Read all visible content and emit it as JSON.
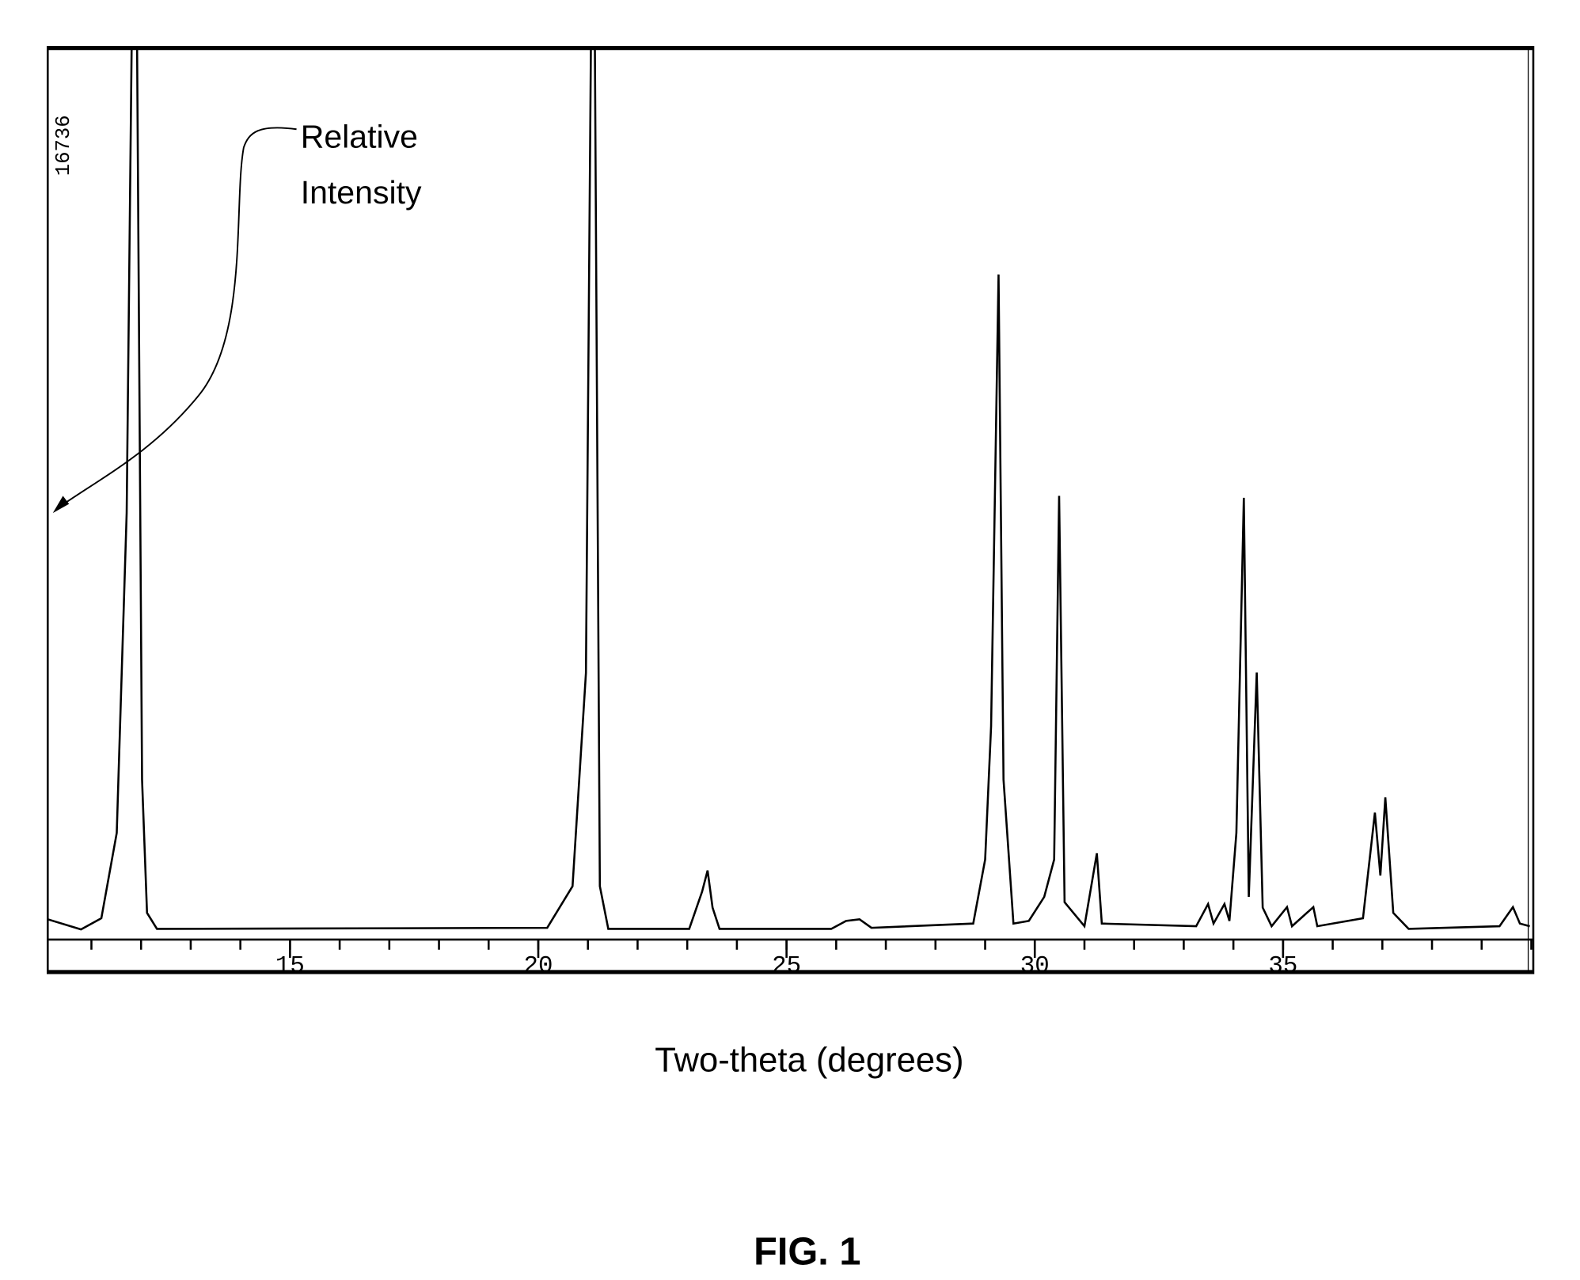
{
  "chart_data": {
    "type": "line",
    "x_label": "Two-theta (degrees)",
    "caption": "FIG. 1",
    "annotation": [
      "Relative",
      "Intensity"
    ],
    "xlim": [
      10.12,
      40.04
    ],
    "xticks": [
      15,
      20,
      25,
      30,
      35
    ],
    "minor_tick_step": 1,
    "ylim": [
      0,
      16736
    ],
    "yticks": [
      16736
    ],
    "color": "#000000",
    "x": [
      10.12,
      10.79,
      11.2,
      11.51,
      11.71,
      11.81,
      11.92,
      12.02,
      12.12,
      12.32,
      20.18,
      20.69,
      20.96,
      21.06,
      21.14,
      21.24,
      21.41,
      23.04,
      23.3,
      23.41,
      23.51,
      23.65,
      25.9,
      26.2,
      26.47,
      26.71,
      28.76,
      29.0,
      29.12,
      29.27,
      29.37,
      29.57,
      29.88,
      30.19,
      30.39,
      30.49,
      30.6,
      31.0,
      31.25,
      31.35,
      33.25,
      33.49,
      33.6,
      33.82,
      33.92,
      34.06,
      34.21,
      34.31,
      34.47,
      34.59,
      34.77,
      35.08,
      35.18,
      35.61,
      35.69,
      36.61,
      36.85,
      36.96,
      37.06,
      37.22,
      37.53,
      39.36,
      39.63,
      39.77,
      39.97
    ],
    "values": [
      380,
      190,
      400,
      2000,
      8000,
      16736,
      16736,
      3000,
      500,
      200,
      220,
      1000,
      5000,
      16736,
      16736,
      1000,
      200,
      200,
      900,
      1295,
      600,
      200,
      200,
      350,
      380,
      220,
      300,
      1500,
      4000,
      12471,
      3000,
      300,
      350,
      800,
      1500,
      8320,
      700,
      250,
      1618,
      300,
      250,
      666,
      300,
      666,
      350,
      2000,
      8282,
      800,
      5007,
      600,
      250,
      609,
      250,
      609,
      250,
      400,
      2380,
      1200,
      2666,
      500,
      200,
      250,
      609,
      300,
      250
    ]
  }
}
